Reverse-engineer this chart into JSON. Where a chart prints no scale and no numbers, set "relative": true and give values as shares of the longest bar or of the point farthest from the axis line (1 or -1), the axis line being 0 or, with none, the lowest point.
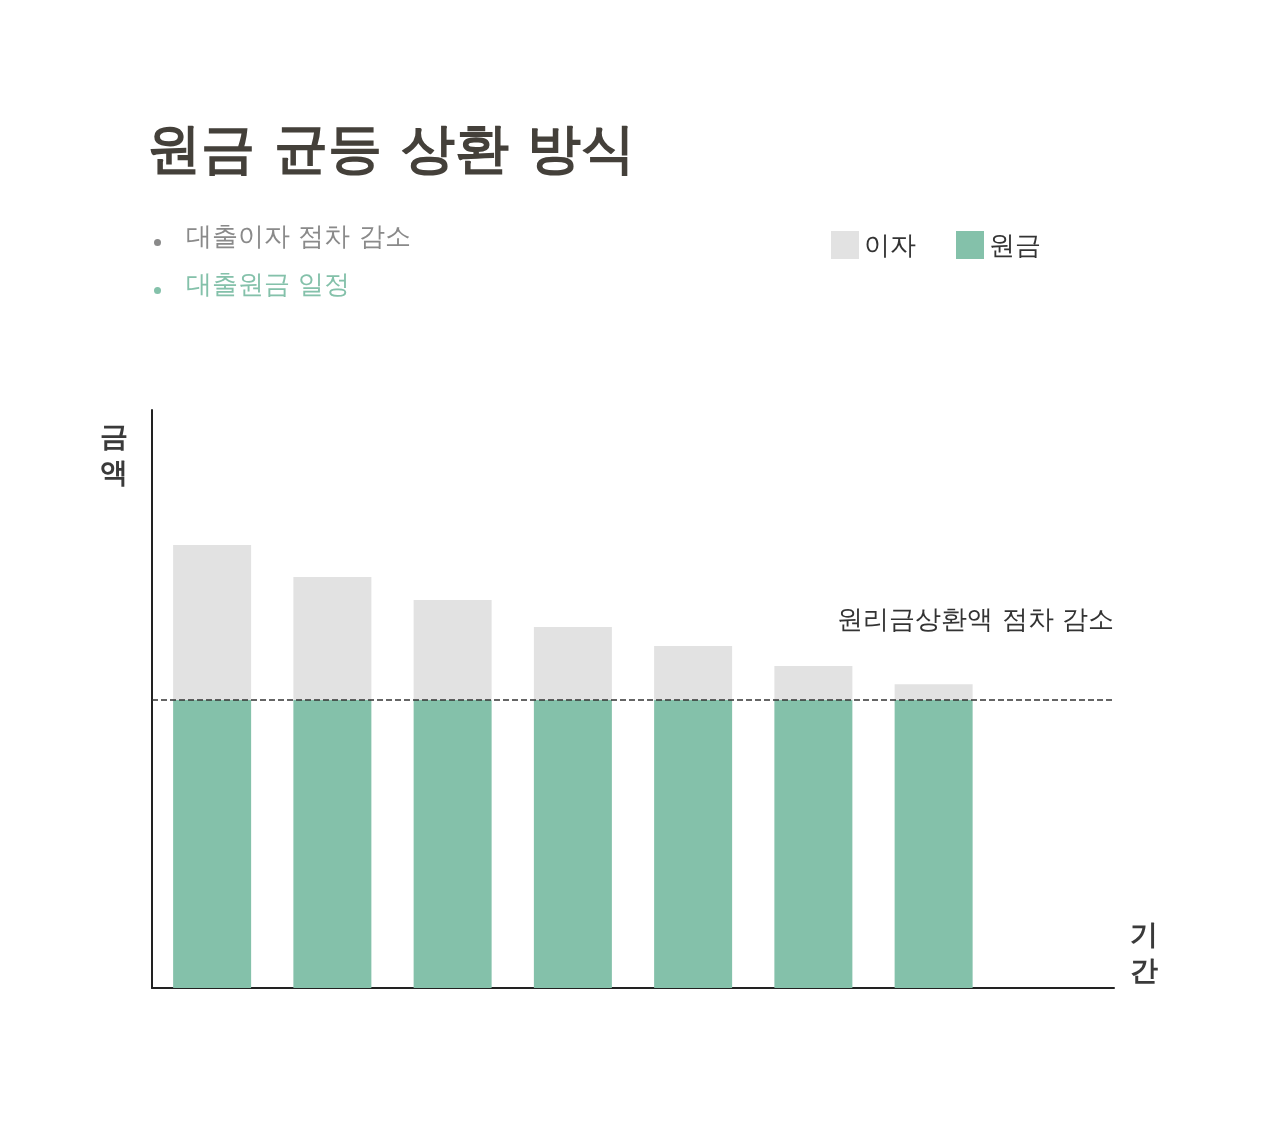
{
  "chart_data": {
    "type": "bar",
    "title": "원금 균등 상환 방식",
    "xlabel": "기간",
    "ylabel": "금액",
    "relative": true,
    "stacked": true,
    "grid": false,
    "legend": "top right",
    "categories": [
      null,
      null,
      null,
      null,
      null,
      null,
      null
    ],
    "series": [
      {
        "name": "원금",
        "color": "#84c1aa",
        "values": [
          0.65,
          0.65,
          0.65,
          0.65,
          0.65,
          0.65,
          0.65
        ]
      },
      {
        "name": "이자",
        "color": "#e2e2e2",
        "values": [
          0.35,
          0.278,
          0.226,
          0.165,
          0.122,
          0.077,
          0.036
        ]
      }
    ],
    "ref_lines": [
      {
        "axis": "y",
        "value": 0.65,
        "color": "#333333",
        "line_style": "dashed"
      }
    ],
    "annotations": [
      "대출이자 점차 감소",
      "대출원금 일정",
      "원리금상환액 점차 감소"
    ]
  }
}
